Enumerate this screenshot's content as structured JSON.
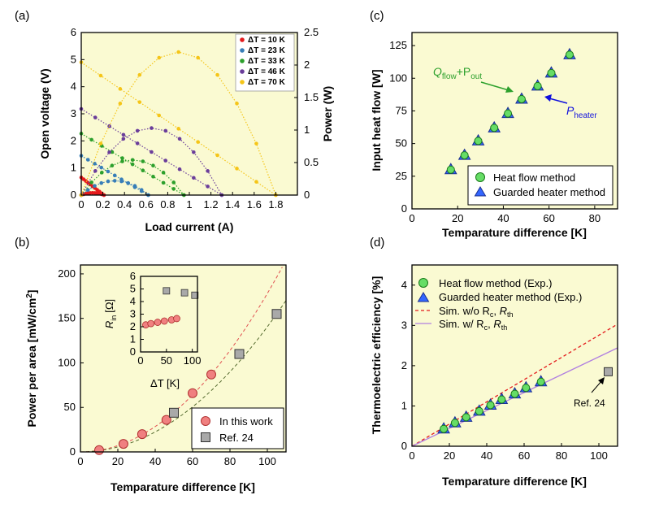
{
  "colors": {
    "plot_bg": "#fafad2",
    "red": "#e41a1c",
    "blue": "#377eb8",
    "green": "#2ca02c",
    "purple": "#6a3d9a",
    "yellow": "#f5c518",
    "marker_red": "#f08080",
    "marker_gray": "#a9a9a9",
    "marker_green": "#66dd66",
    "marker_blue": "#3366ff",
    "purple_line": "#b07fe0"
  },
  "chart_data": [
    {
      "panel": "(a)",
      "type": "line",
      "xlabel": "Load current (A)",
      "ylabel": "Open voltage (V)",
      "ylabel_right": "Power (W)",
      "xlim": [
        0,
        2
      ],
      "ylim": [
        0,
        6
      ],
      "ylim_right": [
        0,
        2.5
      ],
      "xticks": [
        "0",
        "0.2",
        "0.4",
        "0.6",
        "0.8",
        "1",
        "1.2",
        "1.4",
        "1.6",
        "1.8"
      ],
      "yticks": [
        "0",
        "1",
        "2",
        "3",
        "4",
        "5",
        "6"
      ],
      "yticks_right": [
        "0",
        "0.5",
        "1",
        "1.5",
        "2",
        "2.5"
      ],
      "legend_title": "",
      "series": [
        {
          "name": "ΔT = 10 K",
          "voc": 0.65,
          "isc": 0.21,
          "pmax": 0.034,
          "color": "#e41a1c"
        },
        {
          "name": "ΔT = 23 K",
          "voc": 1.45,
          "isc": 0.62,
          "pmax": 0.22,
          "color": "#377eb8"
        },
        {
          "name": "ΔT = 33 K",
          "voc": 2.27,
          "isc": 0.95,
          "pmax": 0.54,
          "color": "#2ca02c"
        },
        {
          "name": "ΔT = 46 K",
          "voc": 3.18,
          "isc": 1.3,
          "pmax": 1.03,
          "color": "#6a3d9a"
        },
        {
          "name": "ΔT = 70 K",
          "voc": 4.9,
          "isc": 1.8,
          "pmax": 2.2,
          "color": "#f5c518"
        }
      ]
    },
    {
      "panel": "(b)",
      "type": "scatter",
      "xlabel": "Temparature difference [K]",
      "ylabel": "Power per area [mW/cm",
      "ylabel_sup": "2",
      "ylabel_end": "]",
      "xlim": [
        0,
        110
      ],
      "ylim": [
        0,
        210
      ],
      "xticks": [
        "0",
        "20",
        "40",
        "60",
        "80",
        "100"
      ],
      "yticks": [
        "0",
        "50",
        "100",
        "150",
        "200"
      ],
      "series": [
        {
          "name": "In this work",
          "x": [
            10,
            23,
            33,
            46,
            60,
            70
          ],
          "y": [
            2,
            9,
            20,
            36,
            66,
            87
          ]
        },
        {
          "name": "Ref. 24",
          "x": [
            50,
            85,
            105
          ],
          "y": [
            44,
            110,
            155
          ]
        }
      ],
      "fits": [
        {
          "name": "fit this work",
          "coef": 0.0178,
          "color": "#e05050"
        },
        {
          "name": "fit Ref. 24",
          "coef": 0.01406,
          "color": "#556b2f"
        }
      ],
      "inset": {
        "xlabel": "ΔT [K]",
        "ylabel": "R",
        "ylabel_sub": "in",
        "ylabel_end": "[Ω]",
        "xlim": [
          0,
          110
        ],
        "ylim": [
          0,
          6
        ],
        "xticks": [
          "0",
          "50",
          "100"
        ],
        "yticks": [
          "0",
          "1",
          "2",
          "3",
          "4",
          "5",
          "6"
        ],
        "series": [
          {
            "name": "In this work",
            "x": [
              10,
              20,
              33,
              46,
              60,
              70
            ],
            "y": [
              2.15,
              2.25,
              2.35,
              2.45,
              2.55,
              2.65
            ]
          },
          {
            "name": "Ref. 24",
            "x": [
              50,
              85,
              105
            ],
            "y": [
              4.85,
              4.7,
              4.5
            ]
          }
        ]
      }
    },
    {
      "panel": "(c)",
      "type": "scatter",
      "xlabel": "Temparature difference [K]",
      "ylabel": "Input heat flow [W]",
      "xlim": [
        0,
        90
      ],
      "ylim": [
        0,
        135
      ],
      "xticks": [
        "0",
        "20",
        "40",
        "60",
        "80"
      ],
      "yticks": [
        "0",
        "25",
        "50",
        "75",
        "100",
        "125"
      ],
      "series": [
        {
          "name": "Heat flow method",
          "x": [
            17,
            23,
            29,
            36,
            42,
            48,
            55,
            61,
            69
          ],
          "y": [
            30,
            41,
            52,
            62,
            73,
            84,
            94,
            104,
            118
          ]
        },
        {
          "name": "Guarded heater method",
          "x": [
            17,
            23,
            29,
            36,
            42,
            48,
            55,
            61,
            69
          ],
          "y": [
            30,
            41,
            52,
            62,
            73,
            84,
            94,
            104,
            118
          ]
        }
      ],
      "annotations": [
        {
          "text": "Q",
          "sub": "flow",
          "rest": "+P",
          "sub2": "out",
          "color": "#2ca02c"
        },
        {
          "text": "P",
          "sub": "heater",
          "color": "#1010dd"
        }
      ]
    },
    {
      "panel": "(d)",
      "type": "scatter",
      "xlabel": "Temparature difference [K]",
      "ylabel": "Thermoelectric efficiency [%]",
      "xlim": [
        0,
        110
      ],
      "ylim": [
        0,
        4.5
      ],
      "xticks": [
        "0",
        "20",
        "40",
        "60",
        "80",
        "100"
      ],
      "yticks": [
        "0",
        "1",
        "2",
        "3",
        "4"
      ],
      "series": [
        {
          "name": "Heat flow method (Exp.)",
          "x": [
            17,
            23,
            29,
            36,
            42,
            48,
            55,
            61,
            69
          ],
          "y": [
            0.43,
            0.58,
            0.72,
            0.87,
            1.02,
            1.16,
            1.3,
            1.45,
            1.6
          ]
        },
        {
          "name": "Guarded heater method (Exp.)",
          "x": [
            17,
            23,
            29,
            36,
            42,
            48,
            55,
            61,
            69
          ],
          "y": [
            0.43,
            0.58,
            0.72,
            0.87,
            1.02,
            1.16,
            1.3,
            1.45,
            1.6
          ]
        },
        {
          "name": "Ref. 24",
          "x": [
            105
          ],
          "y": [
            1.85
          ]
        }
      ],
      "lines": [
        {
          "name": "Sim. w/o R",
          "subs": [
            "c",
            "th"
          ],
          "slope": 0.02755,
          "color": "#e41a1c",
          "dash": true
        },
        {
          "name": "Sim. w/ R",
          "subs": [
            "c",
            "th"
          ],
          "slope": 0.0222,
          "color": "#b07fe0",
          "dash": false
        }
      ],
      "annotation": "Ref. 24"
    }
  ]
}
